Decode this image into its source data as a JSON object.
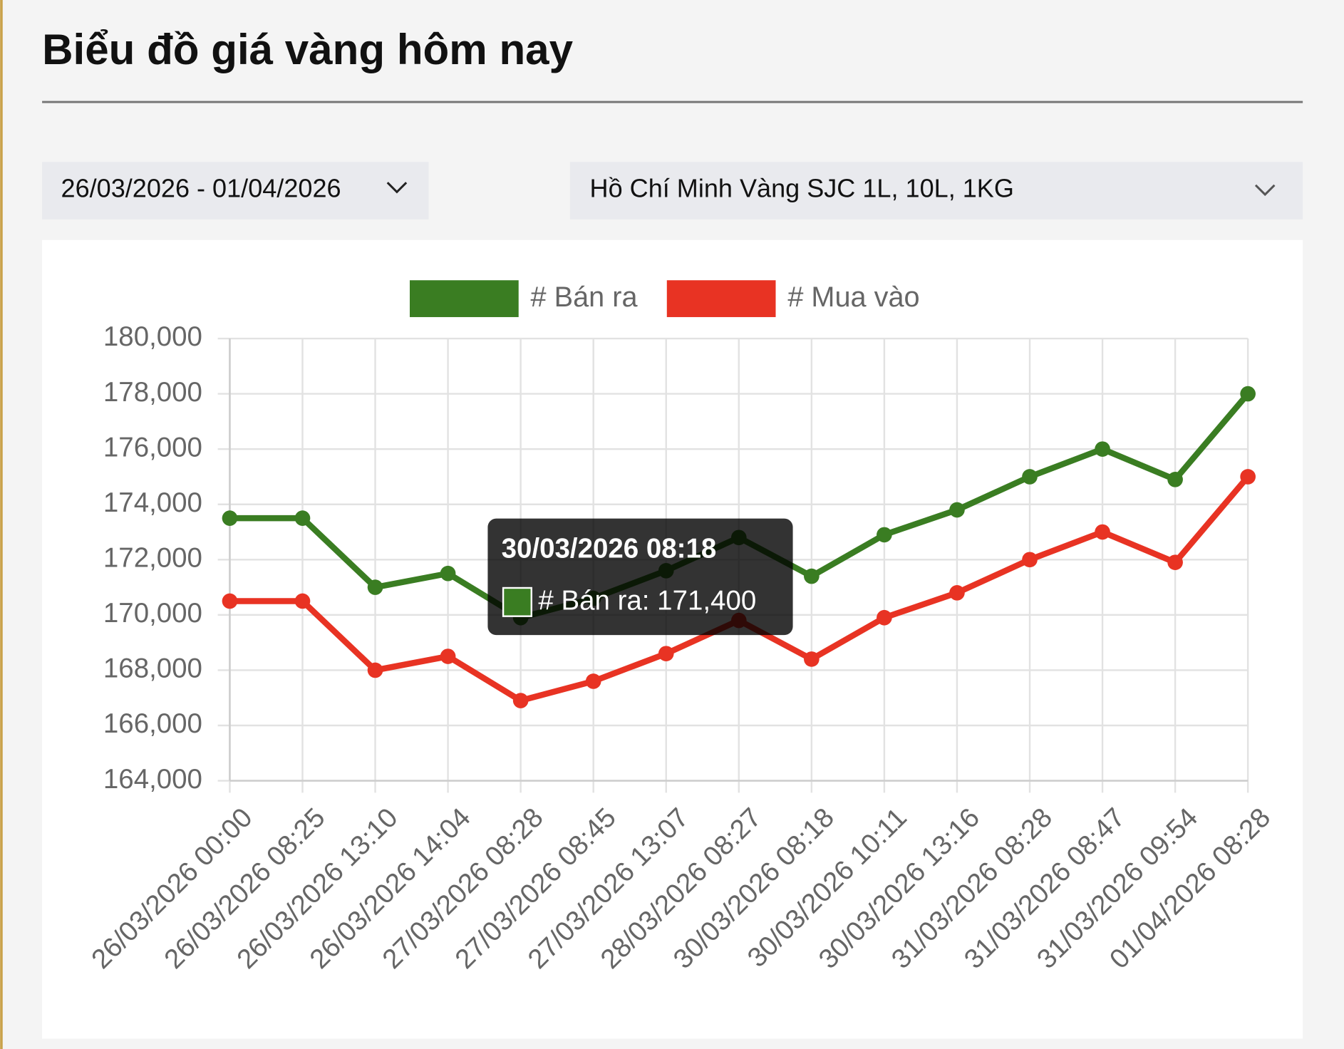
{
  "header": {
    "title": "Biểu đồ giá vàng hôm nay"
  },
  "filters": {
    "date_range": "26/03/2026 - 01/04/2026",
    "product": "Hồ Chí Minh Vàng SJC 1L, 10L, 1KG"
  },
  "chart_data": {
    "type": "line",
    "categories": [
      "26/03/2026 00:00",
      "26/03/2026 08:25",
      "26/03/2026 13:10",
      "26/03/2026 14:04",
      "27/03/2026 08:28",
      "27/03/2026 08:45",
      "27/03/2026 13:07",
      "28/03/2026 08:27",
      "30/03/2026 08:18",
      "30/03/2026 10:11",
      "30/03/2026 13:16",
      "31/03/2026 08:28",
      "31/03/2026 08:47",
      "31/03/2026 09:54",
      "01/04/2026 08:28"
    ],
    "series": [
      {
        "name": "# Bán ra",
        "color": "#3a7d22",
        "values": [
          173500,
          173500,
          171000,
          171500,
          169900,
          170600,
          171600,
          172800,
          171400,
          172900,
          173800,
          175000,
          176000,
          174900,
          178000
        ]
      },
      {
        "name": "# Mua vào",
        "color": "#e83323",
        "values": [
          170500,
          170500,
          168000,
          168500,
          166900,
          167600,
          168600,
          169800,
          168400,
          169900,
          170800,
          172000,
          173000,
          171900,
          175000
        ]
      }
    ],
    "ylim": [
      164000,
      180000
    ],
    "yticks": [
      {
        "value": 164000,
        "label": "164,000"
      },
      {
        "value": 166000,
        "label": "166,000"
      },
      {
        "value": 168000,
        "label": "168,000"
      },
      {
        "value": 170000,
        "label": "170,000"
      },
      {
        "value": 172000,
        "label": "172,000"
      },
      {
        "value": 174000,
        "label": "174,000"
      },
      {
        "value": 176000,
        "label": "176,000"
      },
      {
        "value": 178000,
        "label": "178,000"
      },
      {
        "value": 180000,
        "label": "180,000"
      }
    ],
    "grid": true,
    "legend": "top",
    "tooltip": {
      "title": "30/03/2026 08:18",
      "label": "# Bán ra: 171,400"
    }
  }
}
